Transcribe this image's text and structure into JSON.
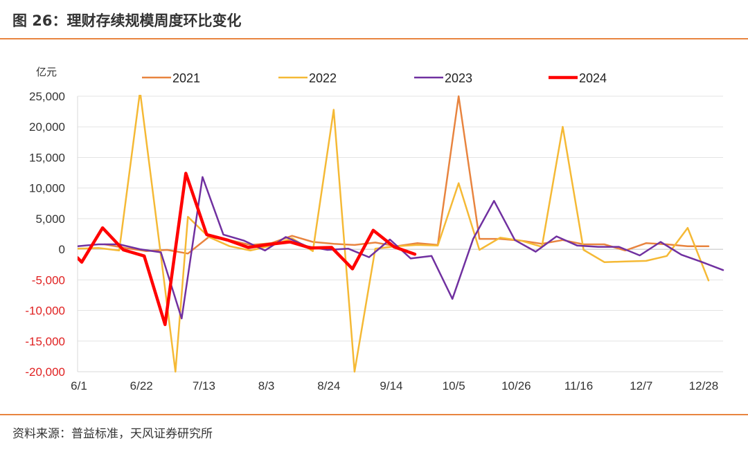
{
  "figure": {
    "title": "图 26：理财存续规模周度环比变化",
    "source": "资料来源：普益标准，天风证券研究所"
  },
  "chart_data": {
    "type": "line",
    "title": "",
    "unit_label": "亿元",
    "xlabel": "",
    "ylabel": "",
    "ylim": [
      -20000,
      25000
    ],
    "yticks": [
      25000,
      20000,
      15000,
      10000,
      5000,
      0,
      -5000,
      -10000,
      -15000,
      -20000
    ],
    "ytick_labels": [
      "25,000",
      "20,000",
      "15,000",
      "10,000",
      "5,000",
      "0",
      "-5,000",
      "-10,000",
      "-15,000",
      "-20,000"
    ],
    "negative_tick_color": "#e02020",
    "x_range_weeks": [
      0,
      30
    ],
    "x_ticks": [
      {
        "pos": 0,
        "label": "6/1"
      },
      {
        "pos": 3,
        "label": "6/22"
      },
      {
        "pos": 6,
        "label": "7/13"
      },
      {
        "pos": 9,
        "label": "8/3"
      },
      {
        "pos": 12,
        "label": "8/24"
      },
      {
        "pos": 15,
        "label": "9/14"
      },
      {
        "pos": 18,
        "label": "10/5"
      },
      {
        "pos": 21,
        "label": "10/26"
      },
      {
        "pos": 24,
        "label": "11/16"
      },
      {
        "pos": 27,
        "label": "12/7"
      },
      {
        "pos": 30,
        "label": "12/28"
      }
    ],
    "grid": true,
    "legend_position": "top",
    "series": [
      {
        "name": "2021",
        "color": "#e8843f",
        "width": 2.5,
        "points": [
          [
            1.3,
            800
          ],
          [
            2.3,
            200
          ],
          [
            3.3,
            -300
          ],
          [
            4.3,
            -100
          ],
          [
            5.3,
            -700
          ],
          [
            6.3,
            2000
          ],
          [
            7.3,
            1500
          ],
          [
            8.3,
            700
          ],
          [
            9.3,
            1000
          ],
          [
            10.3,
            2200
          ],
          [
            11.3,
            1200
          ],
          [
            12.3,
            900
          ],
          [
            13.3,
            700
          ],
          [
            14.3,
            1100
          ],
          [
            15.3,
            500
          ],
          [
            16.3,
            1000
          ],
          [
            17.3,
            700
          ],
          [
            18.3,
            25000
          ],
          [
            19.3,
            1700
          ],
          [
            20.3,
            1700
          ],
          [
            21.3,
            1400
          ],
          [
            22.3,
            900
          ],
          [
            23.3,
            1500
          ],
          [
            24.3,
            800
          ],
          [
            25.3,
            800
          ],
          [
            26.3,
            -200
          ],
          [
            27.3,
            1000
          ],
          [
            28.3,
            800
          ],
          [
            29.3,
            500
          ],
          [
            30.3,
            500
          ]
        ]
      },
      {
        "name": "2022",
        "color": "#f5b935",
        "width": 2.5,
        "points": [
          [
            0,
            100
          ],
          [
            1,
            200
          ],
          [
            2,
            -200
          ],
          [
            3,
            25800
          ],
          [
            4,
            -1000
          ],
          [
            4.7,
            -20000
          ],
          [
            5.3,
            5300
          ],
          [
            6.3,
            2000
          ],
          [
            7.3,
            500
          ],
          [
            8.3,
            -200
          ],
          [
            9.3,
            600
          ],
          [
            10.3,
            1800
          ],
          [
            11.3,
            -300
          ],
          [
            12.3,
            22800
          ],
          [
            13.3,
            -20000
          ],
          [
            14.3,
            100
          ],
          [
            15.3,
            500
          ],
          [
            16.3,
            700
          ],
          [
            17.3,
            600
          ],
          [
            18.3,
            10800
          ],
          [
            19.3,
            -100
          ],
          [
            20.3,
            1900
          ],
          [
            21.3,
            1400
          ],
          [
            22.3,
            400
          ],
          [
            23.3,
            20000
          ],
          [
            24.3,
            -100
          ],
          [
            25.3,
            -2100
          ],
          [
            26.3,
            -2000
          ],
          [
            27.3,
            -1900
          ],
          [
            28.3,
            -1100
          ],
          [
            29.3,
            3500
          ],
          [
            30.3,
            -5100
          ]
        ]
      },
      {
        "name": "2023",
        "color": "#7030a0",
        "width": 2.5,
        "points": [
          [
            0,
            500
          ],
          [
            1,
            800
          ],
          [
            2,
            800
          ],
          [
            3,
            0
          ],
          [
            4,
            -500
          ],
          [
            5,
            -11300
          ],
          [
            6,
            11800
          ],
          [
            7,
            2400
          ],
          [
            8,
            1400
          ],
          [
            9,
            -200
          ],
          [
            10,
            2000
          ],
          [
            11,
            500
          ],
          [
            12,
            -100
          ],
          [
            13,
            100
          ],
          [
            14,
            -1300
          ],
          [
            15,
            1600
          ],
          [
            16,
            -1500
          ],
          [
            17,
            -1100
          ],
          [
            18,
            -8100
          ],
          [
            19,
            1700
          ],
          [
            20,
            7900
          ],
          [
            21,
            1500
          ],
          [
            22,
            -400
          ],
          [
            23,
            2100
          ],
          [
            24,
            600
          ],
          [
            25,
            400
          ],
          [
            26,
            400
          ],
          [
            27,
            -1000
          ],
          [
            28,
            1200
          ],
          [
            29,
            -900
          ],
          [
            30,
            -2100
          ],
          [
            31,
            -3400
          ]
        ]
      },
      {
        "name": "2024",
        "color": "#ff0000",
        "width": 4.5,
        "points": [
          [
            0,
            -1400
          ],
          [
            0.2,
            -2100
          ],
          [
            1.2,
            3500
          ],
          [
            2.2,
            -100
          ],
          [
            3.2,
            -1100
          ],
          [
            4.2,
            -12300
          ],
          [
            5.2,
            12400
          ],
          [
            6.2,
            2400
          ],
          [
            7.2,
            1500
          ],
          [
            8.2,
            300
          ],
          [
            9.2,
            800
          ],
          [
            10.2,
            1200
          ],
          [
            11.2,
            200
          ],
          [
            12.2,
            300
          ],
          [
            13.2,
            -3200
          ],
          [
            14.2,
            3100
          ],
          [
            15.2,
            400
          ],
          [
            16.2,
            -800
          ]
        ]
      }
    ]
  }
}
